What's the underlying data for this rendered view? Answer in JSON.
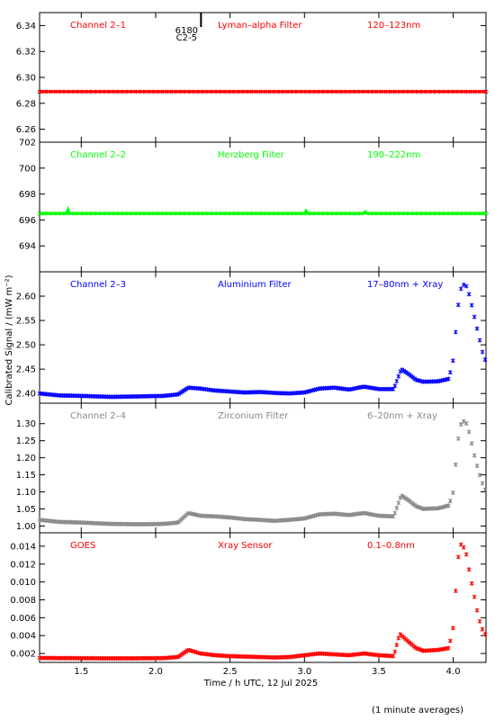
{
  "chart_data": {
    "type": "scatter",
    "x_axis": {
      "label": "Time / h UTC, 12 Jul 2025",
      "range": [
        1.22,
        4.22
      ],
      "ticks": [
        1.5,
        2.0,
        2.5,
        3.0,
        3.5,
        4.0
      ],
      "tick_labels": [
        "1.5",
        "2.0",
        "2.5",
        "3.0",
        "3.5",
        "4.0"
      ]
    },
    "y_axis_label": "Calibrated Signal / (mW m⁻²)",
    "footnote": "(1 minute averages)",
    "marker": {
      "top": "6180",
      "bottom": "C2-5",
      "x": 2.22
    },
    "panels": [
      {
        "channel": "Channel 2–1",
        "filter": "Lyman–alpha Filter",
        "band": "120–123nm",
        "color": "#ff0000",
        "ylim": [
          6.25,
          6.35
        ],
        "ticks": [
          6.26,
          6.28,
          6.3,
          6.32,
          6.34
        ],
        "tick_labels": [
          "6.26",
          "6.28",
          "6.30",
          "6.32",
          "6.34"
        ],
        "series": [
          [
            1.22,
            6.289
          ],
          [
            2.0,
            6.289
          ],
          [
            3.0,
            6.289
          ],
          [
            4.22,
            6.289
          ]
        ],
        "continuous": true
      },
      {
        "channel": "Channel 2–2",
        "filter": "Herzberg Filter",
        "band": "190–222nm",
        "color": "#00ff00",
        "ylim": [
          692,
          702
        ],
        "ticks": [
          694,
          696,
          698,
          700,
          702
        ],
        "tick_labels": [
          "694",
          "696",
          "698",
          "700",
          "702"
        ],
        "series": [
          [
            1.22,
            696.5
          ],
          [
            1.4,
            696.5
          ],
          [
            1.41,
            696.8
          ],
          [
            1.42,
            696.5
          ],
          [
            3.0,
            696.5
          ],
          [
            3.01,
            696.7
          ],
          [
            3.02,
            696.5
          ],
          [
            3.4,
            696.5
          ],
          [
            3.41,
            696.6
          ],
          [
            3.42,
            696.5
          ],
          [
            4.22,
            696.5
          ]
        ],
        "continuous": true
      },
      {
        "channel": "Channel 2–3",
        "filter": "Aluminium Filter",
        "band": "17–80nm + Xray",
        "color": "#0000ff",
        "ylim": [
          2.38,
          2.65
        ],
        "ticks": [
          2.4,
          2.45,
          2.5,
          2.55,
          2.6
        ],
        "tick_labels": [
          "2.40",
          "2.45",
          "2.50",
          "2.55",
          "2.60"
        ],
        "series": [
          [
            1.22,
            2.4
          ],
          [
            1.35,
            2.396
          ],
          [
            1.5,
            2.395
          ],
          [
            1.7,
            2.393
          ],
          [
            1.9,
            2.394
          ],
          [
            2.05,
            2.395
          ],
          [
            2.15,
            2.398
          ],
          [
            2.22,
            2.412
          ],
          [
            2.3,
            2.41
          ],
          [
            2.4,
            2.406
          ],
          [
            2.5,
            2.404
          ],
          [
            2.6,
            2.402
          ],
          [
            2.7,
            2.403
          ],
          [
            2.8,
            2.401
          ],
          [
            2.9,
            2.4
          ],
          [
            3.0,
            2.402
          ],
          [
            3.1,
            2.41
          ],
          [
            3.2,
            2.412
          ],
          [
            3.3,
            2.408
          ],
          [
            3.4,
            2.414
          ],
          [
            3.5,
            2.409
          ],
          [
            3.6,
            2.409
          ],
          [
            3.65,
            2.45
          ],
          [
            3.7,
            2.44
          ],
          [
            3.75,
            2.428
          ],
          [
            3.8,
            2.424
          ],
          [
            3.9,
            2.425
          ],
          [
            3.97,
            2.43
          ],
          [
            4.0,
            2.47
          ],
          [
            4.02,
            2.54
          ],
          [
            4.04,
            2.6
          ],
          [
            4.06,
            2.625
          ],
          [
            4.09,
            2.62
          ],
          [
            4.11,
            2.6
          ],
          [
            4.14,
            2.56
          ],
          [
            4.17,
            2.52
          ],
          [
            4.2,
            2.48
          ],
          [
            4.22,
            2.465
          ]
        ],
        "continuous": false
      },
      {
        "channel": "Channel 2–4",
        "filter": "Zirconium Filter",
        "band": "6–20nm + Xray",
        "color": "#888888",
        "ylim": [
          0.98,
          1.36
        ],
        "ticks": [
          1.0,
          1.05,
          1.1,
          1.15,
          1.2,
          1.25,
          1.3
        ],
        "tick_labels": [
          "1.00",
          "1.05",
          "1.10",
          "1.15",
          "1.20",
          "1.25",
          "1.30"
        ],
        "series": [
          [
            1.22,
            1.018
          ],
          [
            1.35,
            1.012
          ],
          [
            1.5,
            1.01
          ],
          [
            1.7,
            1.006
          ],
          [
            1.9,
            1.005
          ],
          [
            2.05,
            1.006
          ],
          [
            2.15,
            1.01
          ],
          [
            2.22,
            1.038
          ],
          [
            2.3,
            1.03
          ],
          [
            2.4,
            1.028
          ],
          [
            2.5,
            1.025
          ],
          [
            2.6,
            1.02
          ],
          [
            2.7,
            1.018
          ],
          [
            2.8,
            1.015
          ],
          [
            2.9,
            1.018
          ],
          [
            3.0,
            1.022
          ],
          [
            3.1,
            1.034
          ],
          [
            3.2,
            1.036
          ],
          [
            3.3,
            1.032
          ],
          [
            3.4,
            1.038
          ],
          [
            3.5,
            1.03
          ],
          [
            3.6,
            1.028
          ],
          [
            3.65,
            1.09
          ],
          [
            3.7,
            1.075
          ],
          [
            3.75,
            1.058
          ],
          [
            3.8,
            1.05
          ],
          [
            3.9,
            1.052
          ],
          [
            3.97,
            1.06
          ],
          [
            4.0,
            1.1
          ],
          [
            4.02,
            1.2
          ],
          [
            4.04,
            1.28
          ],
          [
            4.06,
            1.31
          ],
          [
            4.09,
            1.3
          ],
          [
            4.11,
            1.27
          ],
          [
            4.14,
            1.21
          ],
          [
            4.17,
            1.16
          ],
          [
            4.2,
            1.12
          ],
          [
            4.22,
            1.1
          ]
        ],
        "continuous": false
      },
      {
        "channel": "GOES",
        "filter": "Xray Sensor",
        "band": "0.1–0.8nm",
        "color": "#ff0000",
        "ylim": [
          0.001,
          0.0155
        ],
        "ticks": [
          0.002,
          0.004,
          0.006,
          0.008,
          0.01,
          0.012,
          0.014
        ],
        "tick_labels": [
          "0.002",
          "0.004",
          "0.006",
          "0.008",
          "0.010",
          "0.012",
          "0.014"
        ],
        "series": [
          [
            1.22,
            0.0015
          ],
          [
            1.35,
            0.00148
          ],
          [
            1.5,
            0.00147
          ],
          [
            1.7,
            0.00145
          ],
          [
            1.9,
            0.00146
          ],
          [
            2.05,
            0.00148
          ],
          [
            2.15,
            0.0016
          ],
          [
            2.22,
            0.0024
          ],
          [
            2.3,
            0.002
          ],
          [
            2.4,
            0.0018
          ],
          [
            2.5,
            0.0017
          ],
          [
            2.6,
            0.00165
          ],
          [
            2.7,
            0.0016
          ],
          [
            2.8,
            0.00155
          ],
          [
            2.9,
            0.0016
          ],
          [
            3.0,
            0.0018
          ],
          [
            3.1,
            0.002
          ],
          [
            3.2,
            0.0019
          ],
          [
            3.3,
            0.0018
          ],
          [
            3.4,
            0.002
          ],
          [
            3.5,
            0.0018
          ],
          [
            3.6,
            0.0017
          ],
          [
            3.64,
            0.0042
          ],
          [
            3.7,
            0.0033
          ],
          [
            3.75,
            0.0026
          ],
          [
            3.8,
            0.0023
          ],
          [
            3.9,
            0.0024
          ],
          [
            3.97,
            0.0026
          ],
          [
            4.0,
            0.005
          ],
          [
            4.02,
            0.01
          ],
          [
            4.04,
            0.014
          ],
          [
            4.06,
            0.0143
          ],
          [
            4.09,
            0.013
          ],
          [
            4.11,
            0.011
          ],
          [
            4.14,
            0.0085
          ],
          [
            4.17,
            0.006
          ],
          [
            4.2,
            0.0045
          ],
          [
            4.22,
            0.004
          ]
        ],
        "continuous": false
      }
    ]
  }
}
